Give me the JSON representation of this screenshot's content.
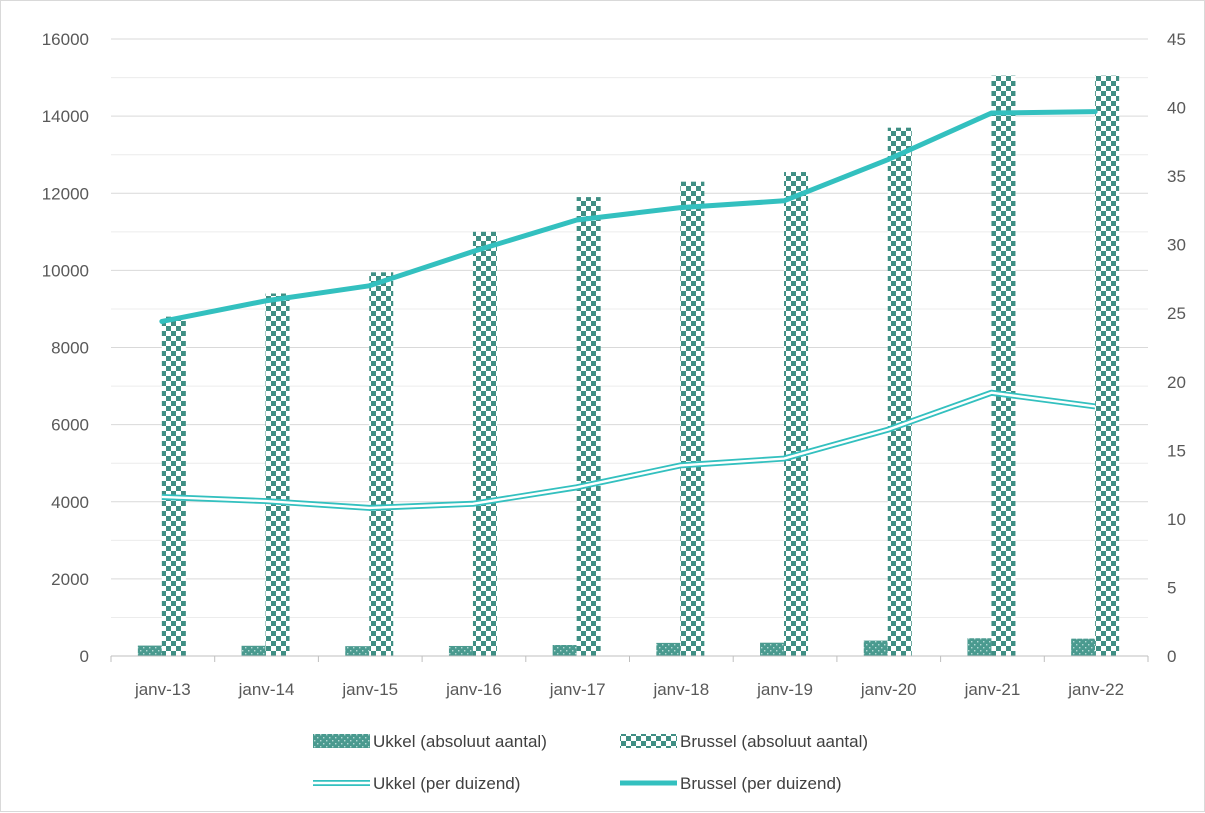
{
  "chart_data": {
    "type": "bar",
    "categories": [
      "janv-13",
      "janv-14",
      "janv-15",
      "janv-16",
      "janv-17",
      "janv-18",
      "janv-19",
      "janv-20",
      "janv-21",
      "janv-22"
    ],
    "bars": [
      {
        "name": "Ukkel (absoluut aantal)",
        "axis": "left",
        "pattern": "dotted",
        "color": "#4a9a8f",
        "values": [
          270,
          265,
          255,
          260,
          285,
          340,
          345,
          400,
          460,
          450
        ]
      },
      {
        "name": "Brussel (absoluut aantal)",
        "axis": "left",
        "pattern": "checker",
        "color": "#3f8f84",
        "values": [
          8800,
          9400,
          9950,
          11000,
          11900,
          12300,
          12550,
          13700,
          15050,
          15050
        ]
      }
    ],
    "lines": [
      {
        "name": "Ukkel (per duizend)",
        "axis": "right",
        "style": "double",
        "color": "#33c0bf",
        "values": [
          11.6,
          11.3,
          10.8,
          11.1,
          12.3,
          13.9,
          14.4,
          16.5,
          19.2,
          18.2
        ]
      },
      {
        "name": "Brussel (per duizend)",
        "axis": "right",
        "style": "solid",
        "color": "#33c0bf",
        "values": [
          24.4,
          25.9,
          27.0,
          29.5,
          31.8,
          32.7,
          33.2,
          36.2,
          39.6,
          39.7
        ]
      }
    ],
    "y_left": {
      "min": 0,
      "max": 16000,
      "ticks": [
        "0",
        "2000",
        "4000",
        "6000",
        "8000",
        "10000",
        "12000",
        "14000",
        "16000"
      ]
    },
    "y_right": {
      "min": 0,
      "max": 45,
      "ticks": [
        "0",
        "5",
        "10",
        "15",
        "20",
        "25",
        "30",
        "35",
        "40",
        "45"
      ]
    },
    "grid": true,
    "legend_position": "bottom",
    "title": "",
    "xlabel": "",
    "ylabel": ""
  }
}
